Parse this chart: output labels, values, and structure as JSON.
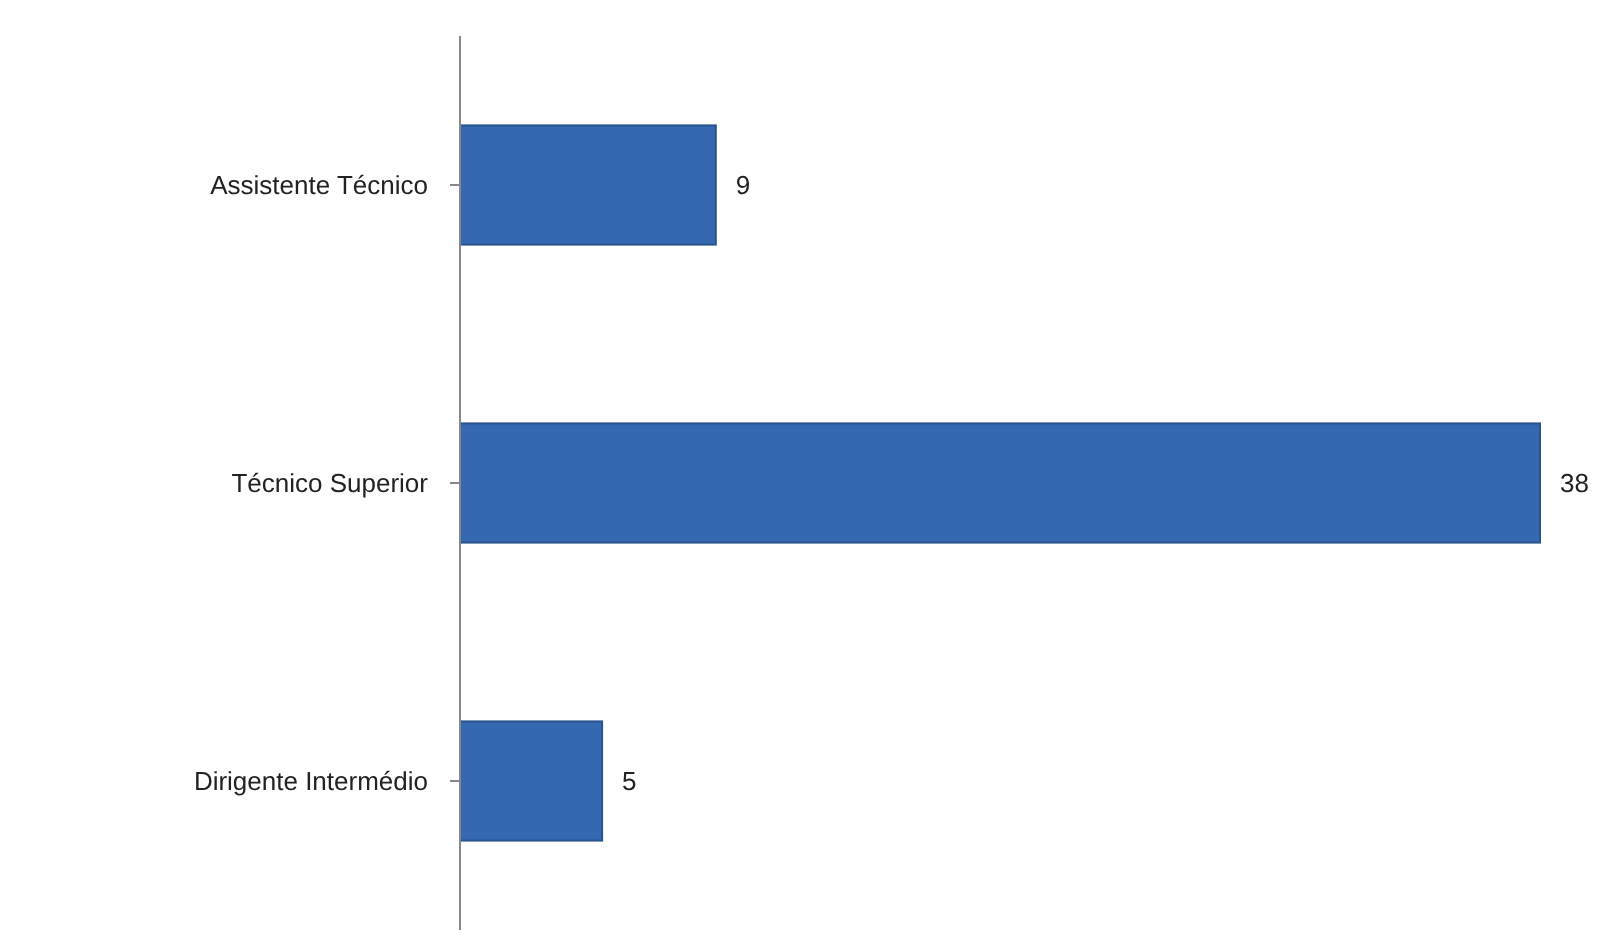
{
  "chart_data": {
    "type": "bar",
    "orientation": "horizontal",
    "categories": [
      "Assistente Técnico",
      "Técnico Superior",
      "Dirigente Intermédio"
    ],
    "values": [
      9,
      38,
      5
    ],
    "color": "#3468b0",
    "data_labels": true
  }
}
